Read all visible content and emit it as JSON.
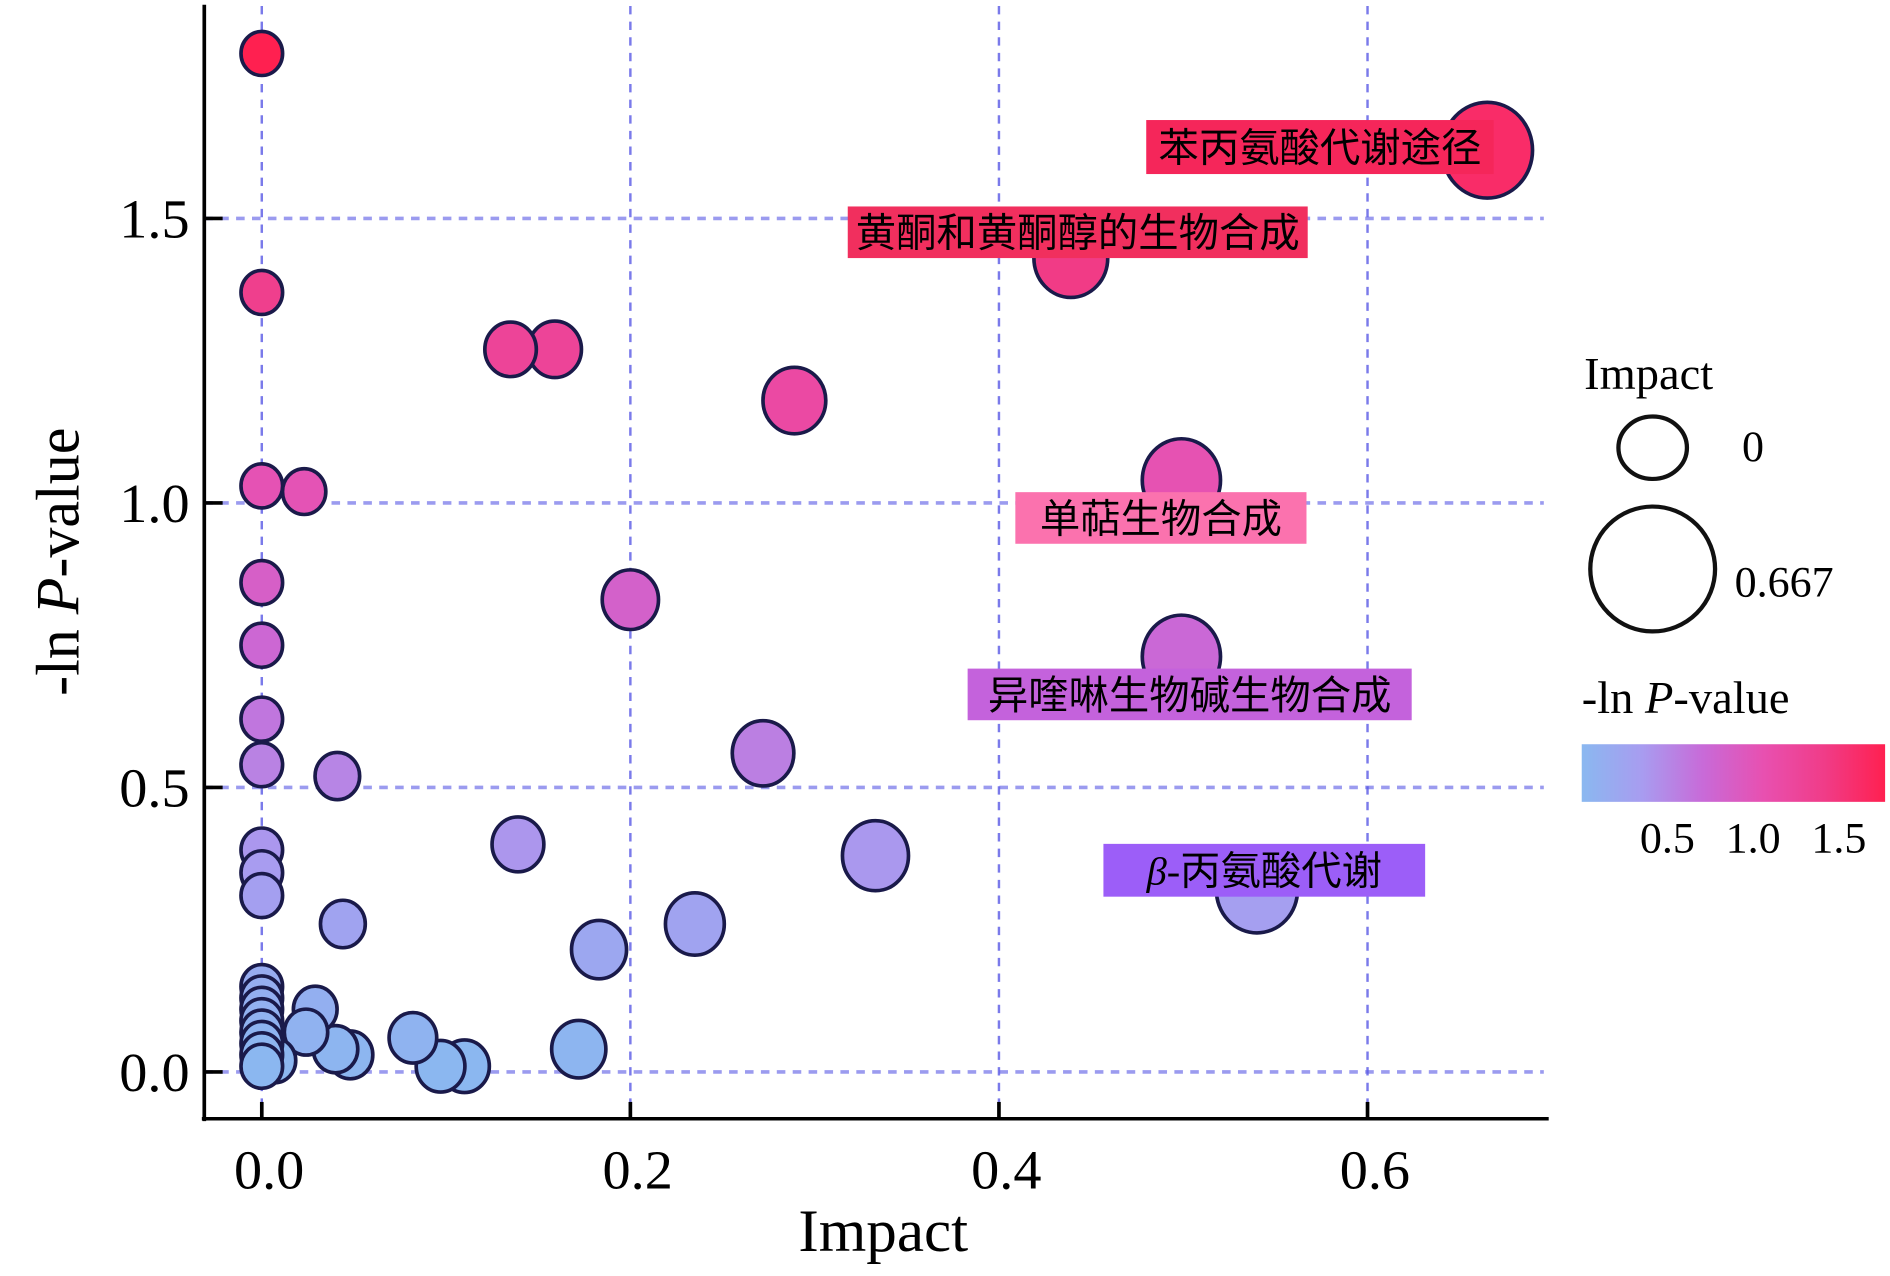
{
  "chart_data": {
    "type": "scatter",
    "title": "",
    "xlabel": "Impact",
    "ylabel_prefix": "-ln ",
    "ylabel_italic": "P",
    "ylabel_suffix": "-value",
    "xlim": [
      -0.032,
      0.7
    ],
    "ylim": [
      -0.08,
      1.87
    ],
    "xticks": [
      0.0,
      0.2,
      0.4,
      0.6
    ],
    "xtick_labels": [
      "0.0",
      "0.2",
      "0.4",
      "0.6"
    ],
    "yticks": [
      0.0,
      0.5,
      1.0,
      1.5
    ],
    "ytick_labels": [
      "0.0",
      "0.5",
      "1.0",
      "1.5"
    ],
    "grid": true,
    "grid_color": "#5a5ae6",
    "points": [
      {
        "x": 0.0,
        "y": 1.79
      },
      {
        "x": 0.665,
        "y": 1.62
      },
      {
        "x": 0.439,
        "y": 1.43
      },
      {
        "x": 0.0,
        "y": 1.37
      },
      {
        "x": 0.135,
        "y": 1.27
      },
      {
        "x": 0.159,
        "y": 1.27
      },
      {
        "x": 0.289,
        "y": 1.18
      },
      {
        "x": 0.0,
        "y": 1.03
      },
      {
        "x": 0.023,
        "y": 1.02
      },
      {
        "x": 0.499,
        "y": 1.04
      },
      {
        "x": 0.0,
        "y": 0.86
      },
      {
        "x": 0.2,
        "y": 0.83
      },
      {
        "x": 0.0,
        "y": 0.75
      },
      {
        "x": 0.499,
        "y": 0.73
      },
      {
        "x": 0.0,
        "y": 0.62
      },
      {
        "x": 0.0,
        "y": 0.54
      },
      {
        "x": 0.041,
        "y": 0.52
      },
      {
        "x": 0.272,
        "y": 0.56
      },
      {
        "x": 0.139,
        "y": 0.4
      },
      {
        "x": 0.333,
        "y": 0.38
      },
      {
        "x": 0.0,
        "y": 0.39
      },
      {
        "x": 0.0,
        "y": 0.35
      },
      {
        "x": 0.0,
        "y": 0.31
      },
      {
        "x": 0.044,
        "y": 0.26
      },
      {
        "x": 0.235,
        "y": 0.26
      },
      {
        "x": 0.54,
        "y": 0.32
      },
      {
        "x": 0.183,
        "y": 0.215
      },
      {
        "x": 0.0,
        "y": 0.15
      },
      {
        "x": 0.0,
        "y": 0.13
      },
      {
        "x": 0.0,
        "y": 0.11
      },
      {
        "x": 0.0,
        "y": 0.09
      },
      {
        "x": 0.0,
        "y": 0.07
      },
      {
        "x": 0.0,
        "y": 0.05
      },
      {
        "x": 0.0,
        "y": 0.03
      },
      {
        "x": 0.029,
        "y": 0.11
      },
      {
        "x": 0.024,
        "y": 0.07
      },
      {
        "x": 0.04,
        "y": 0.04
      },
      {
        "x": 0.082,
        "y": 0.06
      },
      {
        "x": 0.11,
        "y": 0.01
      },
      {
        "x": 0.097,
        "y": 0.01
      },
      {
        "x": 0.048,
        "y": 0.03
      },
      {
        "x": 0.172,
        "y": 0.04
      },
      {
        "x": 0.007,
        "y": 0.02
      },
      {
        "x": 0.0,
        "y": 0.01
      }
    ],
    "annotations": [
      {
        "text": "苯丙氨酸代谢途径",
        "x": 0.665,
        "y": 1.62,
        "color": "#f5265a"
      },
      {
        "text": "黄酮和黄酮醇的生物合成",
        "x": 0.439,
        "y": 1.43,
        "color": "#f12f5e"
      },
      {
        "text": "单萜生物合成",
        "x": 0.499,
        "y": 1.04,
        "color": "#fb72ae"
      },
      {
        "text": "异喹啉生物碱生物合成",
        "x": 0.499,
        "y": 0.73,
        "color": "#c462dc"
      },
      {
        "text": "β-丙氨酸代谢",
        "italic_prefix": "β",
        "rest": "-丙氨酸代谢",
        "x": 0.54,
        "y": 0.32,
        "color": "#9c5ef8"
      }
    ],
    "size_legend": {
      "title": "Impact",
      "entries": [
        {
          "value": 0,
          "label": "0"
        },
        {
          "value": 0.667,
          "label": "0.667"
        }
      ]
    },
    "color_legend": {
      "title_prefix": "-ln ",
      "title_italic": "P",
      "title_suffix": "-value",
      "range": [
        0.0,
        1.77
      ],
      "ticks": [
        0.5,
        1.0,
        1.5
      ],
      "tick_labels": [
        "0.5",
        "1.0",
        "1.5"
      ],
      "colors": [
        "#8ab8f0",
        "#a89cf0",
        "#c86ad8",
        "#e850b0",
        "#f03c88",
        "#ff2050"
      ]
    }
  }
}
